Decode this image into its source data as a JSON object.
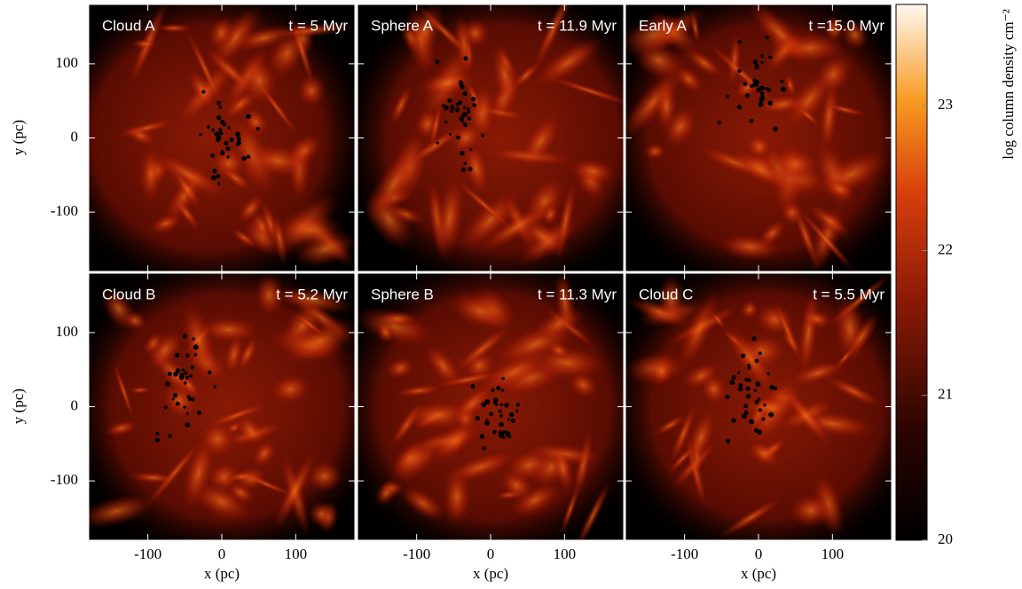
{
  "figure": {
    "panels": [
      {
        "name": "Cloud A",
        "time": "t = 5 Myr"
      },
      {
        "name": "Sphere A",
        "time": "t = 11.9 Myr"
      },
      {
        "name": "Early A",
        "time": "t =15.0 Myr"
      },
      {
        "name": "Cloud B",
        "time": "t = 5.2 Myr"
      },
      {
        "name": "Sphere B",
        "time": "t = 11.3 Myr"
      },
      {
        "name": "Cloud C",
        "time": "t = 5.5 Myr"
      }
    ],
    "xlabel": "x (pc)",
    "ylabel": "y (pc)",
    "xlim": [
      -180,
      180
    ],
    "xticks": [
      -100,
      0,
      100
    ],
    "ylim": [
      -180,
      180
    ],
    "yticks": [
      -100,
      0,
      100
    ],
    "colorbar": {
      "label": "log column density cm⁻²",
      "lim": [
        20,
        23.7
      ],
      "ticks": [
        20,
        21,
        22,
        23
      ]
    }
  }
}
